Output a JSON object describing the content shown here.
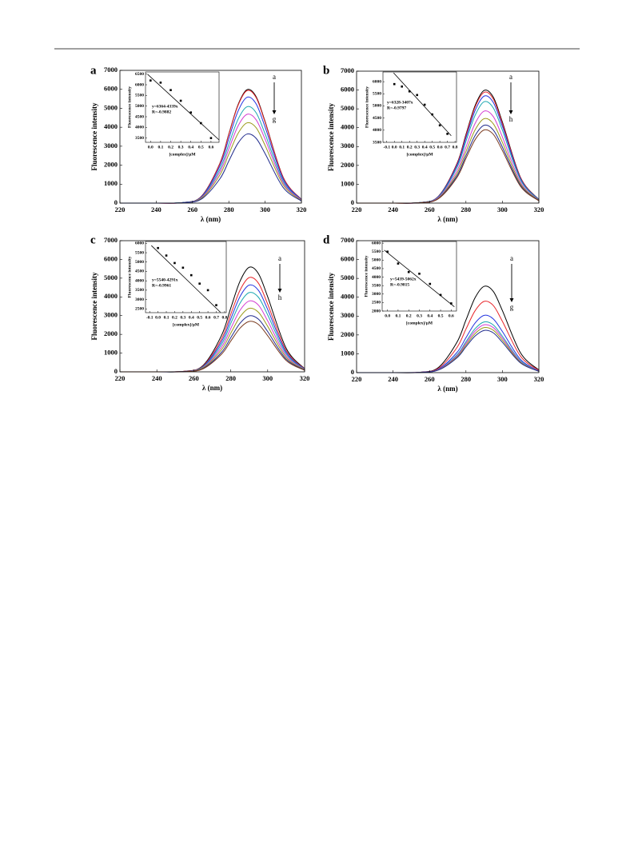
{
  "chart_data": [
    {
      "type": "line",
      "panel": "a",
      "xlabel": "λ (nm)",
      "ylabel": "Fluorescence intensity",
      "x": [
        220,
        240,
        255,
        265,
        275,
        280,
        285,
        290,
        295,
        300,
        310,
        320
      ],
      "xlim": [
        220,
        320
      ],
      "xticks": [
        220,
        240,
        260,
        280,
        300,
        320
      ],
      "ylim": [
        0,
        7000
      ],
      "yticks": [
        0,
        1000,
        2000,
        3000,
        4000,
        5000,
        6000,
        7000
      ],
      "arrow_start": "a",
      "arrow_end": "g",
      "series": [
        {
          "color": "#000000",
          "values": [
            0,
            0,
            30,
            370,
            2080,
            3640,
            5170,
            5980,
            5620,
            4300,
            1350,
            190
          ]
        },
        {
          "color": "#e8252a",
          "values": [
            0,
            0,
            30,
            360,
            2060,
            3610,
            5130,
            5930,
            5570,
            4260,
            1340,
            180
          ]
        },
        {
          "color": "#2233e0",
          "values": [
            0,
            0,
            30,
            340,
            1940,
            3400,
            4830,
            5580,
            5240,
            4010,
            1260,
            170
          ]
        },
        {
          "color": "#1aa7b0",
          "values": [
            0,
            0,
            30,
            310,
            1770,
            3100,
            4400,
            5080,
            4770,
            3650,
            1150,
            160
          ]
        },
        {
          "color": "#d23ad2",
          "values": [
            0,
            0,
            20,
            290,
            1630,
            2850,
            4050,
            4680,
            4400,
            3370,
            1060,
            150
          ]
        },
        {
          "color": "#9a9a1a",
          "values": [
            0,
            0,
            20,
            260,
            1470,
            2580,
            3660,
            4230,
            3980,
            3040,
            960,
            130
          ]
        },
        {
          "color": "#1f2a8c",
          "values": [
            0,
            0,
            20,
            220,
            1270,
            2220,
            3150,
            3640,
            3420,
            2610,
            820,
            110
          ]
        }
      ],
      "inset": {
        "type": "scatter",
        "xlabel": "[complex]/μM",
        "ylabel": "Fluorescence intensity",
        "x": [
          0,
          0.1,
          0.2,
          0.3,
          0.4,
          0.5,
          0.6
        ],
        "values": [
          6200,
          6100,
          5750,
          5250,
          4700,
          4200,
          3500
        ],
        "xlim": [
          -0.05,
          0.68
        ],
        "xticks": [
          {
            "value": 0,
            "label": "0.0"
          },
          0.1,
          0.2,
          0.3,
          0.4,
          0.5,
          0.6
        ],
        "ylim": [
          3300,
          6600
        ],
        "yticks": [
          3500,
          4000,
          4500,
          5000,
          5500,
          6000,
          6500
        ],
        "fit": {
          "x": [
            -0.03,
            0.68
          ],
          "y": [
            6494,
            3413
          ]
        },
        "equation": "y=6364-4339x",
        "r_text": "R=-0.9882"
      }
    },
    {
      "type": "line",
      "panel": "b",
      "xlabel": "λ (nm)",
      "ylabel": "Fluorescence intensity",
      "x": [
        220,
        240,
        255,
        265,
        275,
        280,
        285,
        290,
        295,
        300,
        310,
        320
      ],
      "xlim": [
        220,
        320
      ],
      "xticks": [
        220,
        240,
        260,
        280,
        300,
        320
      ],
      "ylim": [
        0,
        7000
      ],
      "yticks": [
        0,
        1000,
        2000,
        3000,
        4000,
        5000,
        6000,
        7000
      ],
      "arrow_start": "a",
      "arrow_end": "h",
      "series": [
        {
          "color": "#000000",
          "values": [
            0,
            0,
            30,
            370,
            2080,
            3640,
            5170,
            5980,
            5620,
            4300,
            1350,
            190
          ]
        },
        {
          "color": "#e8252a",
          "values": [
            0,
            0,
            30,
            360,
            2050,
            3580,
            5090,
            5880,
            5520,
            4220,
            1330,
            180
          ]
        },
        {
          "color": "#2233e0",
          "values": [
            0,
            0,
            30,
            350,
            1980,
            3460,
            4910,
            5680,
            5340,
            4080,
            1280,
            180
          ]
        },
        {
          "color": "#1aa7b0",
          "values": [
            0,
            0,
            30,
            330,
            1870,
            3280,
            4650,
            5380,
            5050,
            3870,
            1220,
            170
          ]
        },
        {
          "color": "#d23ad2",
          "values": [
            0,
            0,
            20,
            300,
            1700,
            2970,
            4220,
            4880,
            4590,
            3510,
            1100,
            150
          ]
        },
        {
          "color": "#9a9a1a",
          "values": [
            0,
            0,
            20,
            270,
            1560,
            2730,
            3880,
            4480,
            4210,
            3220,
            1010,
            140
          ]
        },
        {
          "color": "#1f2a8c",
          "values": [
            0,
            0,
            20,
            250,
            1440,
            2520,
            3580,
            4130,
            3880,
            2970,
            930,
            130
          ]
        },
        {
          "color": "#7a3b20",
          "values": [
            0,
            0,
            20,
            240,
            1350,
            2370,
            3360,
            3880,
            3650,
            2790,
            880,
            120
          ]
        }
      ],
      "inset": {
        "type": "scatter",
        "xlabel": "[complex]/μM",
        "ylabel": "Fluorescence intensity",
        "x": [
          0,
          0.1,
          0.2,
          0.3,
          0.4,
          0.5,
          0.6,
          0.7
        ],
        "values": [
          5900,
          5800,
          5600,
          5450,
          5050,
          4650,
          4200,
          3850
        ],
        "xlim": [
          -0.15,
          0.82
        ],
        "xticks": [
          -0.1,
          {
            "value": 0,
            "label": "0.0"
          },
          0.1,
          0.2,
          0.3,
          0.4,
          0.5,
          0.6,
          0.7,
          0.8
        ],
        "ylim": [
          3500,
          6400
        ],
        "yticks": [
          3500,
          4000,
          4500,
          5000,
          5500,
          6000
        ],
        "fit": {
          "x": [
            -0.01,
            0.75
          ],
          "y": [
            6362,
            3773
          ]
        },
        "equation": "y=6328-3407x",
        "r_text": "R=-0.9797"
      }
    },
    {
      "type": "line",
      "panel": "c",
      "xlabel": "λ (nm)",
      "ylabel": "Fluorescence intensity",
      "x": [
        220,
        240,
        255,
        265,
        275,
        280,
        285,
        290,
        295,
        300,
        310,
        320
      ],
      "xlim": [
        220,
        320
      ],
      "xticks": [
        220,
        240,
        260,
        280,
        300,
        320
      ],
      "ylim": [
        0,
        7000
      ],
      "yticks": [
        0,
        1000,
        2000,
        3000,
        4000,
        5000,
        6000,
        7000
      ],
      "arrow_start": "a",
      "arrow_end": "h",
      "series": [
        {
          "color": "#000000",
          "values": [
            0,
            0,
            30,
            340,
            1940,
            3400,
            4830,
            5580,
            5240,
            4010,
            1260,
            170
          ]
        },
        {
          "color": "#e8252a",
          "values": [
            0,
            0,
            30,
            310,
            1750,
            3070,
            4350,
            5030,
            4730,
            3620,
            1140,
            160
          ]
        },
        {
          "color": "#2233e0",
          "values": [
            0,
            0,
            20,
            280,
            1610,
            2820,
            4010,
            4630,
            4350,
            3330,
            1050,
            140
          ]
        },
        {
          "color": "#1aa7b0",
          "values": [
            0,
            0,
            20,
            260,
            1470,
            2580,
            3660,
            4230,
            3980,
            3040,
            960,
            130
          ]
        },
        {
          "color": "#d23ad2",
          "values": [
            0,
            0,
            20,
            230,
            1320,
            2310,
            3280,
            3780,
            3560,
            2720,
            860,
            120
          ]
        },
        {
          "color": "#9a9a1a",
          "values": [
            0,
            0,
            20,
            210,
            1180,
            2060,
            2930,
            3390,
            3180,
            2430,
            770,
            110
          ]
        },
        {
          "color": "#1f2a8c",
          "values": [
            0,
            0,
            20,
            180,
            1040,
            1820,
            2590,
            2990,
            2810,
            2150,
            680,
            90
          ]
        },
        {
          "color": "#7a3b20",
          "values": [
            0,
            0,
            10,
            160,
            940,
            1640,
            2330,
            2690,
            2530,
            1930,
            610,
            80
          ]
        }
      ],
      "inset": {
        "type": "scatter",
        "xlabel": "[complex]/μM",
        "ylabel": "Fluorescence intensity",
        "x": [
          0,
          0.1,
          0.2,
          0.3,
          0.4,
          0.5,
          0.6,
          0.7
        ],
        "values": [
          5750,
          5350,
          4950,
          4700,
          4300,
          3850,
          3500,
          2700
        ],
        "xlim": [
          -0.15,
          0.82
        ],
        "xticks": [
          -0.1,
          {
            "value": 0,
            "label": "0.0"
          },
          0.1,
          0.2,
          0.3,
          0.4,
          0.5,
          0.6,
          0.7,
          0.8
        ],
        "ylim": [
          2300,
          6100
        ],
        "yticks": [
          2500,
          3000,
          3500,
          4000,
          4500,
          5000,
          5500,
          6000
        ],
        "fit": {
          "x": [
            -0.08,
            0.75
          ],
          "y": [
            5883,
            2322
          ]
        },
        "equation": "y=5540-4291x",
        "r_text": "R=-0.9961"
      }
    },
    {
      "type": "line",
      "panel": "d",
      "xlabel": "λ (nm)",
      "ylabel": "Fluorescence intensity",
      "x": [
        220,
        240,
        255,
        265,
        275,
        280,
        285,
        290,
        295,
        300,
        310,
        320
      ],
      "xlim": [
        220,
        320
      ],
      "xticks": [
        220,
        240,
        260,
        280,
        300,
        320
      ],
      "ylim": [
        0,
        7000
      ],
      "yticks": [
        0,
        1000,
        2000,
        3000,
        4000,
        5000,
        6000,
        7000
      ],
      "arrow_start": "a",
      "arrow_end": "g",
      "series": [
        {
          "color": "#000000",
          "values": [
            0,
            0,
            20,
            280,
            1600,
            2790,
            3970,
            4580,
            4310,
            3290,
            1040,
            140
          ]
        },
        {
          "color": "#e8252a",
          "values": [
            0,
            0,
            20,
            230,
            1320,
            2310,
            3280,
            3780,
            3560,
            2720,
            860,
            120
          ]
        },
        {
          "color": "#2233e0",
          "values": [
            0,
            0,
            20,
            190,
            1060,
            1850,
            2630,
            3040,
            2850,
            2180,
            690,
            90
          ]
        },
        {
          "color": "#1aa7b0",
          "values": [
            0,
            0,
            10,
            160,
            940,
            1640,
            2330,
            2690,
            2530,
            1930,
            610,
            80
          ]
        },
        {
          "color": "#d23ad2",
          "values": [
            0,
            0,
            10,
            160,
            880,
            1550,
            2200,
            2540,
            2390,
            1830,
            570,
            80
          ]
        },
        {
          "color": "#9a9a1a",
          "values": [
            0,
            0,
            10,
            150,
            830,
            1460,
            2070,
            2390,
            2250,
            1720,
            540,
            70
          ]
        },
        {
          "color": "#1f2a8c",
          "values": [
            0,
            0,
            10,
            140,
            780,
            1370,
            1940,
            2240,
            2110,
            1610,
            510,
            70
          ]
        }
      ],
      "inset": {
        "type": "scatter",
        "xlabel": "[complex]/μM",
        "ylabel": "Fluorescence intensity",
        "x": [
          0,
          0.1,
          0.2,
          0.3,
          0.4,
          0.5,
          0.6
        ],
        "values": [
          5500,
          4800,
          4300,
          4200,
          3600,
          2950,
          2450
        ],
        "xlim": [
          -0.05,
          0.65
        ],
        "xticks": [
          {
            "value": 0,
            "label": "0.0"
          },
          0.1,
          0.2,
          0.3,
          0.4,
          0.5,
          0.6
        ],
        "ylim": [
          2000,
          6100
        ],
        "yticks": [
          2000,
          2500,
          3000,
          3500,
          4000,
          4500,
          5000,
          5500,
          6000
        ],
        "fit": {
          "x": [
            -0.03,
            0.63
          ],
          "y": [
            5591,
            2250
          ]
        },
        "equation": "y=5439-5062x",
        "r_text": "R=-0.9815"
      }
    }
  ]
}
